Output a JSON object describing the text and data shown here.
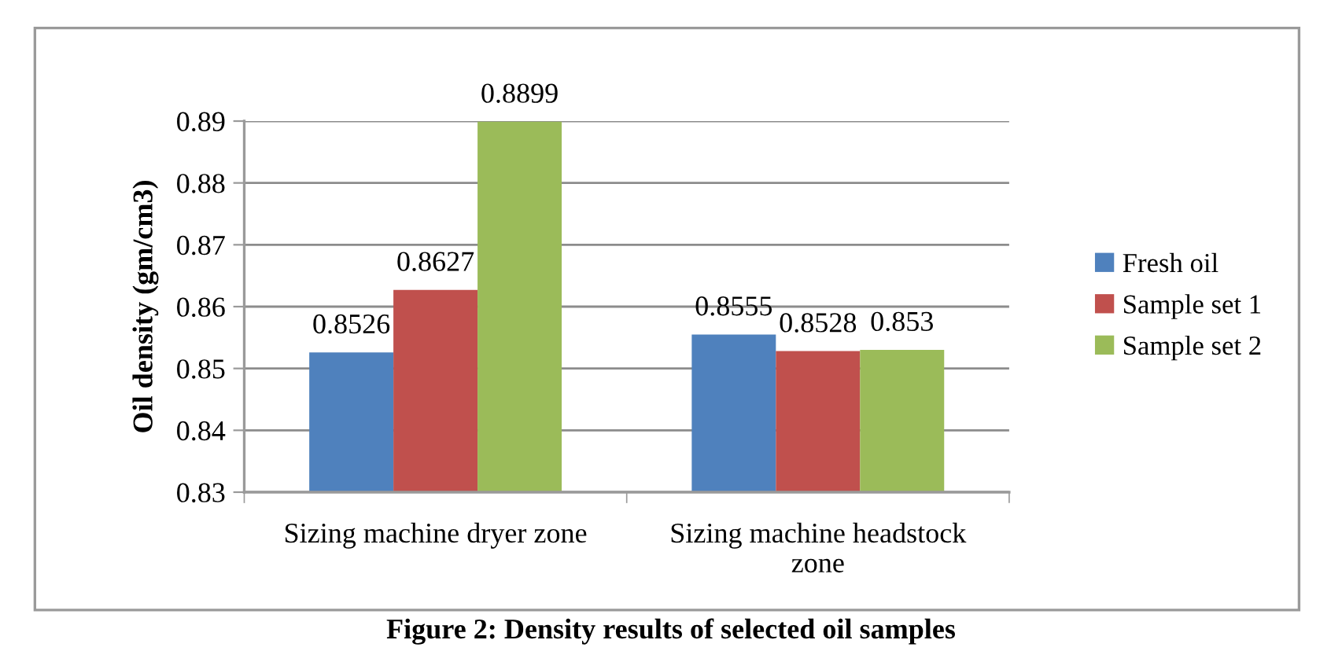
{
  "chart_data": {
    "type": "bar",
    "title": "Figure 2: Density results of selected oil samples",
    "ylabel": "Oil density (gm/cm3)",
    "categories": [
      "Sizing machine dryer zone",
      "Sizing machine headstock zone"
    ],
    "series": [
      {
        "name": "Fresh oil",
        "color": "#4f81bd",
        "values": [
          0.8526,
          0.8555
        ]
      },
      {
        "name": "Sample set 1",
        "color": "#c0504d",
        "values": [
          0.8627,
          0.8528
        ]
      },
      {
        "name": "Sample set 2",
        "color": "#9bbb59",
        "values": [
          0.8899,
          0.853
        ]
      }
    ],
    "ylim": [
      0.83,
      0.89
    ],
    "yticks": [
      0.83,
      0.84,
      0.85,
      0.86,
      0.87,
      0.88,
      0.89
    ],
    "grid": "y",
    "legend": "right",
    "data_labels": true
  }
}
